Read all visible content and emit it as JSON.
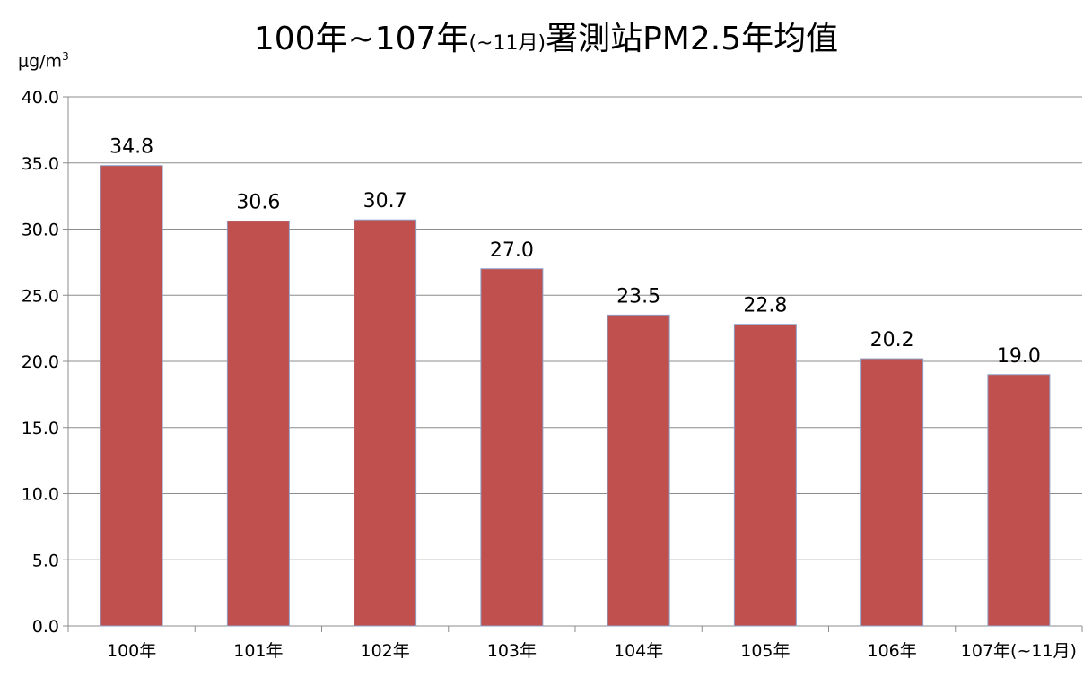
{
  "title": {
    "main_a": "100年~107年",
    "small": "(~11月)",
    "main_b": "署測站PM2.5年均值"
  },
  "unit": {
    "base": "μg/m",
    "sup": "3"
  },
  "chart_data": {
    "type": "bar",
    "title": "100年~107年(~11月)署測站PM2.5年均值",
    "ylabel": "μg/m3",
    "xlabel": "",
    "categories": [
      "100年",
      "101年",
      "102年",
      "103年",
      "104年",
      "105年",
      "106年",
      "107年(~11月)"
    ],
    "values": [
      34.8,
      30.6,
      30.7,
      27.0,
      23.5,
      22.8,
      20.2,
      19.0
    ],
    "data_labels": [
      "34.8",
      "30.6",
      "30.7",
      "27.0",
      "23.5",
      "22.8",
      "20.2",
      "19.0"
    ],
    "ylim": [
      0,
      40
    ],
    "yticks": [
      "0.0",
      "5.0",
      "10.0",
      "15.0",
      "20.0",
      "25.0",
      "30.0",
      "35.0",
      "40.0"
    ],
    "grid": true,
    "legend": "none",
    "bar_color": "#C0504D",
    "bar_edge_color": "#8EA0C8"
  }
}
